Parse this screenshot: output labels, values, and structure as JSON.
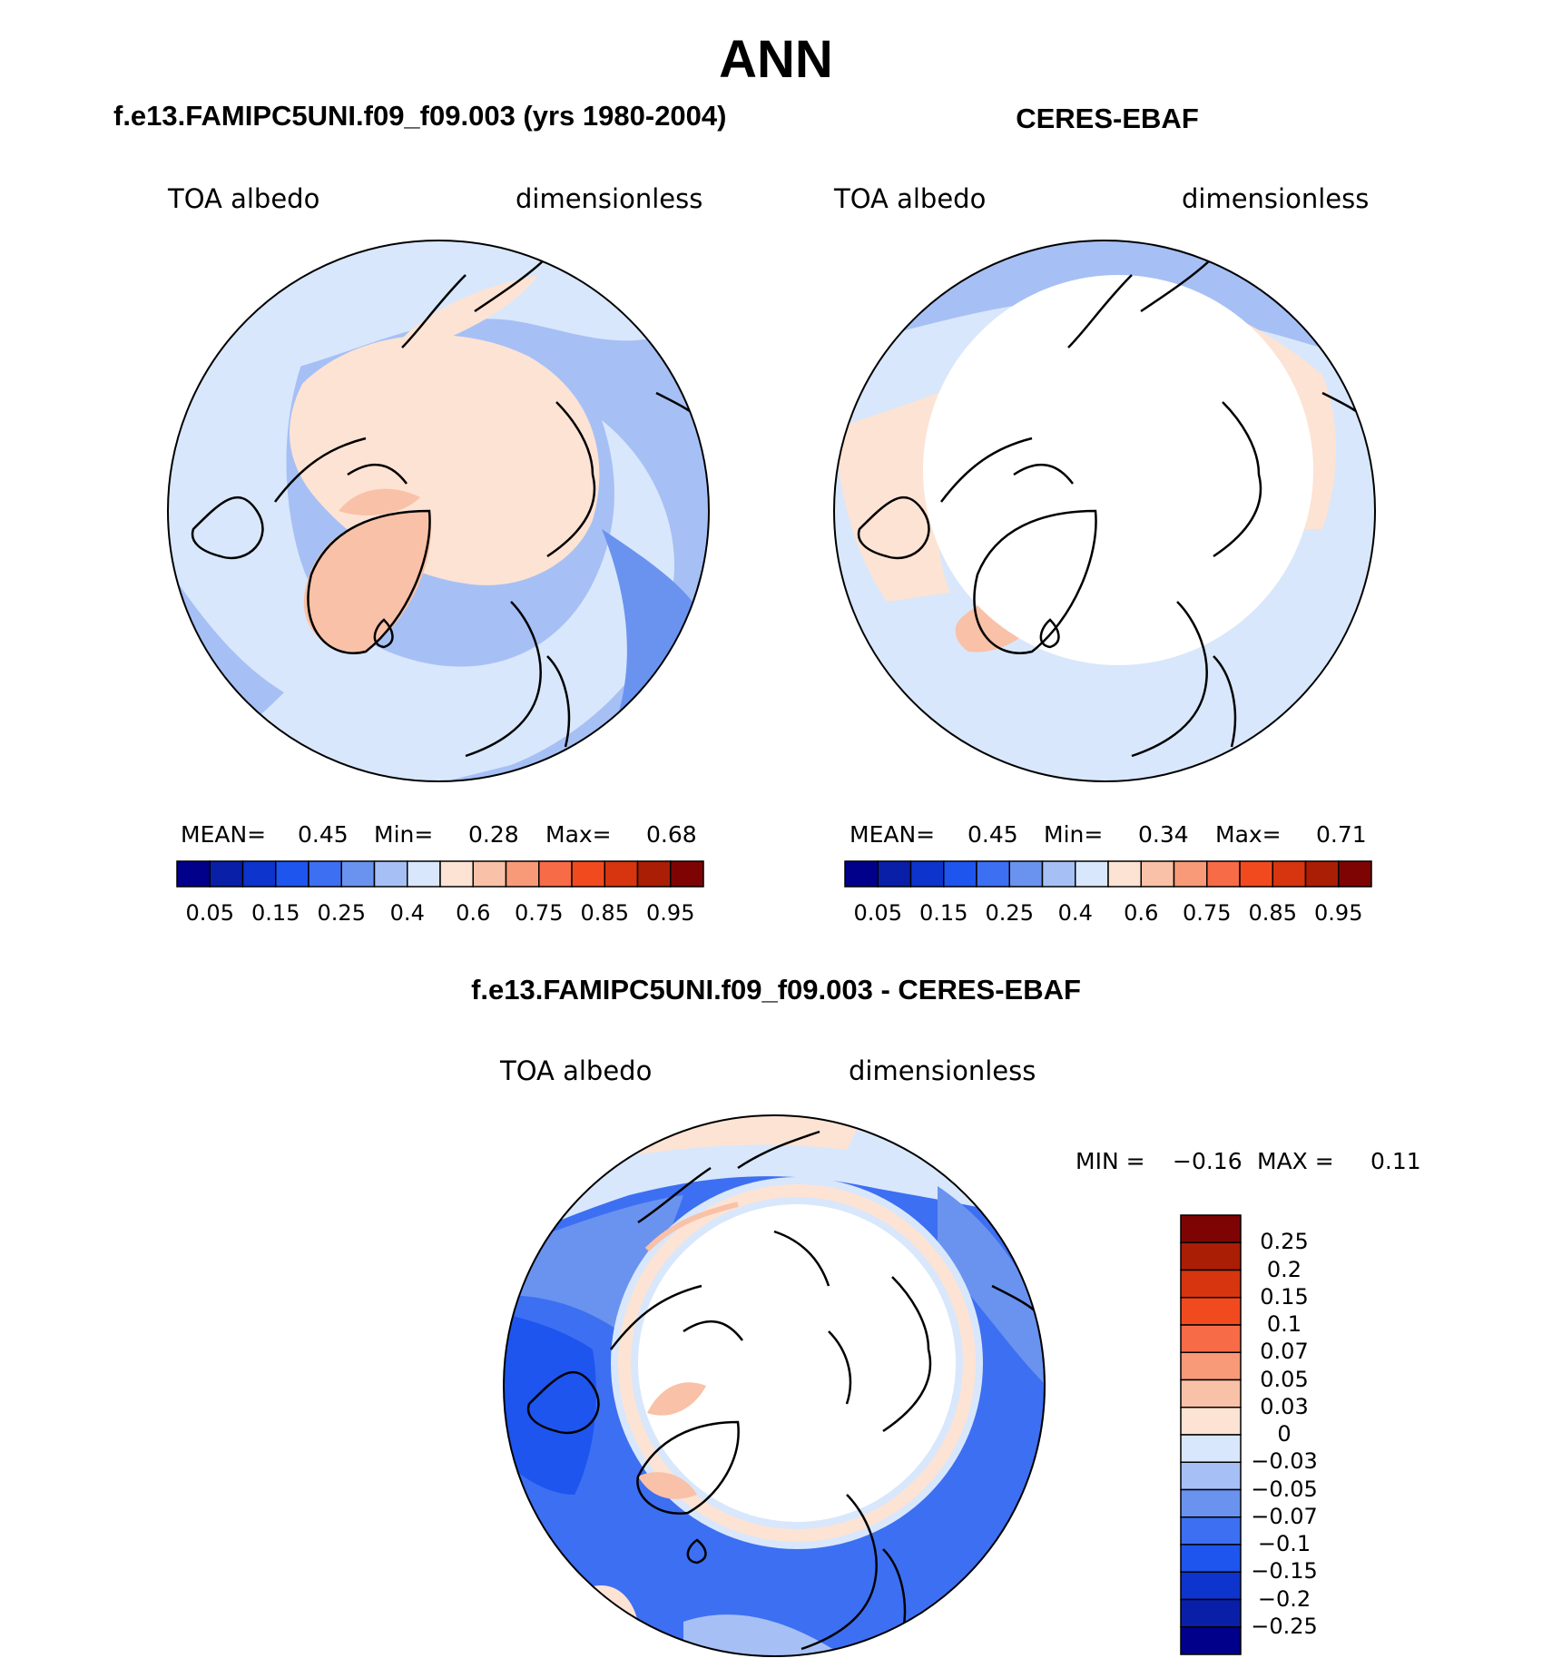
{
  "title": "ANN",
  "panels": [
    {
      "title": "f.e13.FAMIPC5UNI.f09_f09.003 (yrs 1980-2004)",
      "var_label": "TOA albedo",
      "units_label": "dimensionless",
      "mean_label": "MEAN=",
      "mean": "0.45",
      "min_label": "Min=",
      "min": "0.28",
      "max_label": "Max=",
      "max": "0.68"
    },
    {
      "title": "CERES-EBAF",
      "var_label": "TOA albedo",
      "units_label": "dimensionless",
      "mean_label": "MEAN=",
      "mean": "0.45",
      "min_label": "Min=",
      "min": "0.34",
      "max_label": "Max=",
      "max": "0.71"
    }
  ],
  "diff_panel": {
    "title": "f.e13.FAMIPC5UNI.f09_f09.003 - CERES-EBAF",
    "var_label": "TOA albedo",
    "units_label": "dimensionless",
    "min_label": "MIN =",
    "min": "−0.16",
    "max_label": "MAX =",
    "max": "0.11"
  },
  "colorbar_top": {
    "ticks": [
      "0.05",
      "0.15",
      "0.25",
      "0.4",
      "0.6",
      "0.75",
      "0.85",
      "0.95"
    ],
    "colors": [
      "#00008a",
      "#0a1fa8",
      "#0d34cc",
      "#1e55ee",
      "#3d6ff2",
      "#6a93f0",
      "#a6c0f5",
      "#d8e7fb",
      "#fde3d4",
      "#f9c1a7",
      "#f89a78",
      "#f76b47",
      "#f24a1f",
      "#d6350f",
      "#aa1e06",
      "#7e0404"
    ]
  },
  "colorbar_diff": {
    "ticks": [
      "0.25",
      "0.2",
      "0.15",
      "0.1",
      "0.07",
      "0.05",
      "0.03",
      "0",
      "−0.03",
      "−0.05",
      "−0.07",
      "−0.1",
      "−0.15",
      "−0.2",
      "−0.25"
    ],
    "colors": [
      "#7e0404",
      "#aa1e06",
      "#d6350f",
      "#f24a1f",
      "#f76b47",
      "#f89a78",
      "#f9c1a7",
      "#fde3d4",
      "#d8e7fb",
      "#a6c0f5",
      "#6a93f0",
      "#3d6ff2",
      "#1e55ee",
      "#0d34cc",
      "#0a1fa8",
      "#00008a"
    ]
  }
}
